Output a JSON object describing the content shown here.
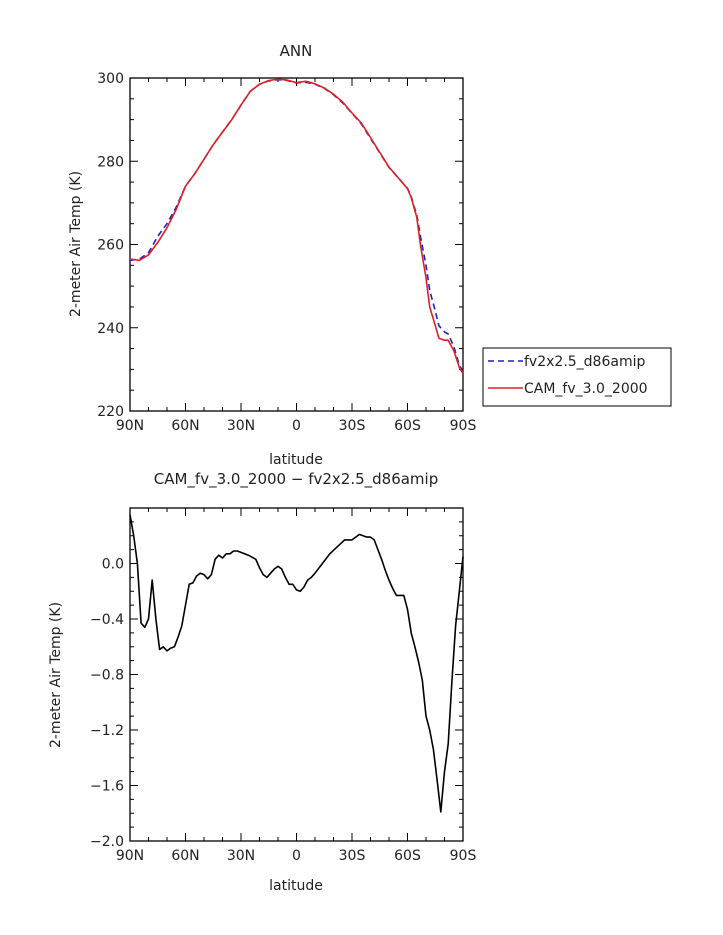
{
  "chart_data": [
    {
      "type": "line",
      "title": "ANN",
      "xlabel": "latitude",
      "ylabel": "2-meter Air Temp (K)",
      "xlim": [
        -90,
        90
      ],
      "ylim": [
        220,
        300
      ],
      "xticks": [
        -90,
        -60,
        -30,
        0,
        30,
        60,
        90
      ],
      "xtick_labels": [
        "90N",
        "60N",
        "30N",
        "0",
        "30S",
        "60S",
        "90S"
      ],
      "yticks": [
        220,
        240,
        260,
        280,
        300
      ],
      "ytick_labels": [
        "220",
        "240",
        "260",
        "280",
        "300"
      ],
      "legend_position": "right",
      "series": [
        {
          "name": "fv2x2.5_d86amip",
          "color": "#1f1fcc",
          "dash": "dashed",
          "x": [
            -90,
            -85,
            -80,
            -75,
            -70,
            -65,
            -60,
            -55,
            -50,
            -45,
            -40,
            -35,
            -30,
            -25,
            -20,
            -15,
            -10,
            -5,
            0,
            5,
            10,
            15,
            20,
            25,
            30,
            35,
            40,
            45,
            50,
            55,
            60,
            62,
            65,
            67,
            70,
            72,
            75,
            77,
            80,
            82,
            85,
            88,
            90
          ],
          "y": [
            256.2,
            256.5,
            258.0,
            262.0,
            265.0,
            269.0,
            274.0,
            277.0,
            280.5,
            284.0,
            287.0,
            290.0,
            293.5,
            296.8,
            298.5,
            299.3,
            299.6,
            299.4,
            298.8,
            299.0,
            298.5,
            297.5,
            296.0,
            294.0,
            291.5,
            289.0,
            285.5,
            282.0,
            278.5,
            276.0,
            273.5,
            271.5,
            267.0,
            262.0,
            255.0,
            249.0,
            244.0,
            240.5,
            239.0,
            238.5,
            235.5,
            231.0,
            229.5
          ]
        },
        {
          "name": "CAM_fv_3.0_2000",
          "color": "#e02020",
          "dash": "solid",
          "x": [
            -90,
            -85,
            -80,
            -75,
            -70,
            -65,
            -60,
            -55,
            -50,
            -45,
            -40,
            -35,
            -30,
            -25,
            -20,
            -15,
            -10,
            -5,
            0,
            5,
            10,
            15,
            20,
            25,
            30,
            35,
            40,
            45,
            50,
            55,
            60,
            62,
            65,
            67,
            70,
            72,
            75,
            77,
            80,
            82,
            85,
            88,
            90
          ],
          "y": [
            256.5,
            256.2,
            257.5,
            260.5,
            264.0,
            268.5,
            274.0,
            277.0,
            280.5,
            284.0,
            287.0,
            290.0,
            293.5,
            296.8,
            298.5,
            299.4,
            299.7,
            299.5,
            298.9,
            299.2,
            298.6,
            297.6,
            296.1,
            294.2,
            291.6,
            289.2,
            285.7,
            282.1,
            278.6,
            276.0,
            273.4,
            271.3,
            266.5,
            260.0,
            252.0,
            245.0,
            240.5,
            237.5,
            237.0,
            237.0,
            234.5,
            230.5,
            229.0
          ]
        }
      ]
    },
    {
      "type": "line",
      "title": "CAM_fv_3.0_2000 − fv2x2.5_d86amip",
      "xlabel": "latitude",
      "ylabel": "2-meter Air Temp (K)",
      "xlim": [
        -90,
        90
      ],
      "ylim": [
        -2.0,
        0.4
      ],
      "xticks": [
        -90,
        -60,
        -30,
        0,
        30,
        60,
        90
      ],
      "xtick_labels": [
        "90N",
        "60N",
        "30N",
        "0",
        "30S",
        "60S",
        "90S"
      ],
      "yticks": [
        -2.0,
        -1.6,
        -1.2,
        -0.8,
        -0.4,
        0.0
      ],
      "ytick_labels": [
        "−2.0",
        "−1.6",
        "−1.2",
        "−0.8",
        "−0.4",
        "0.0"
      ],
      "series": [
        {
          "color": "#000000",
          "dash": "solid",
          "x": [
            -90,
            -88,
            -86,
            -84,
            -82,
            -80,
            -78,
            -76,
            -74,
            -72,
            -70,
            -68,
            -66,
            -64,
            -62,
            -60,
            -58,
            -56,
            -54,
            -52,
            -50,
            -48,
            -46,
            -44,
            -42,
            -40,
            -38,
            -36,
            -34,
            -32,
            -30,
            -26,
            -22,
            -20,
            -18,
            -16,
            -14,
            -12,
            -10,
            -8,
            -6,
            -4,
            -2,
            0,
            2,
            4,
            6,
            8,
            10,
            14,
            18,
            22,
            26,
            30,
            34,
            36,
            38,
            40,
            42,
            44,
            46,
            48,
            50,
            52,
            54,
            56,
            58,
            60,
            62,
            64,
            66,
            68,
            70,
            72,
            74,
            76,
            78,
            80,
            82,
            84,
            86,
            88,
            90
          ],
          "y": [
            0.35,
            0.2,
            0.0,
            -0.43,
            -0.46,
            -0.4,
            -0.12,
            -0.4,
            -0.62,
            -0.6,
            -0.63,
            -0.61,
            -0.6,
            -0.53,
            -0.45,
            -0.3,
            -0.15,
            -0.14,
            -0.09,
            -0.07,
            -0.08,
            -0.11,
            -0.08,
            0.03,
            0.06,
            0.04,
            0.07,
            0.07,
            0.09,
            0.09,
            0.08,
            0.06,
            0.03,
            -0.03,
            -0.08,
            -0.1,
            -0.07,
            -0.04,
            -0.02,
            -0.04,
            -0.1,
            -0.15,
            -0.15,
            -0.19,
            -0.2,
            -0.17,
            -0.12,
            -0.1,
            -0.07,
            0.0,
            0.07,
            0.12,
            0.17,
            0.17,
            0.21,
            0.2,
            0.19,
            0.19,
            0.17,
            0.1,
            0.03,
            -0.05,
            -0.12,
            -0.18,
            -0.23,
            -0.23,
            -0.23,
            -0.33,
            -0.5,
            -0.6,
            -0.71,
            -0.84,
            -1.1,
            -1.2,
            -1.34,
            -1.56,
            -1.79,
            -1.5,
            -1.3,
            -0.85,
            -0.45,
            -0.2,
            0.05
          ]
        }
      ]
    }
  ]
}
